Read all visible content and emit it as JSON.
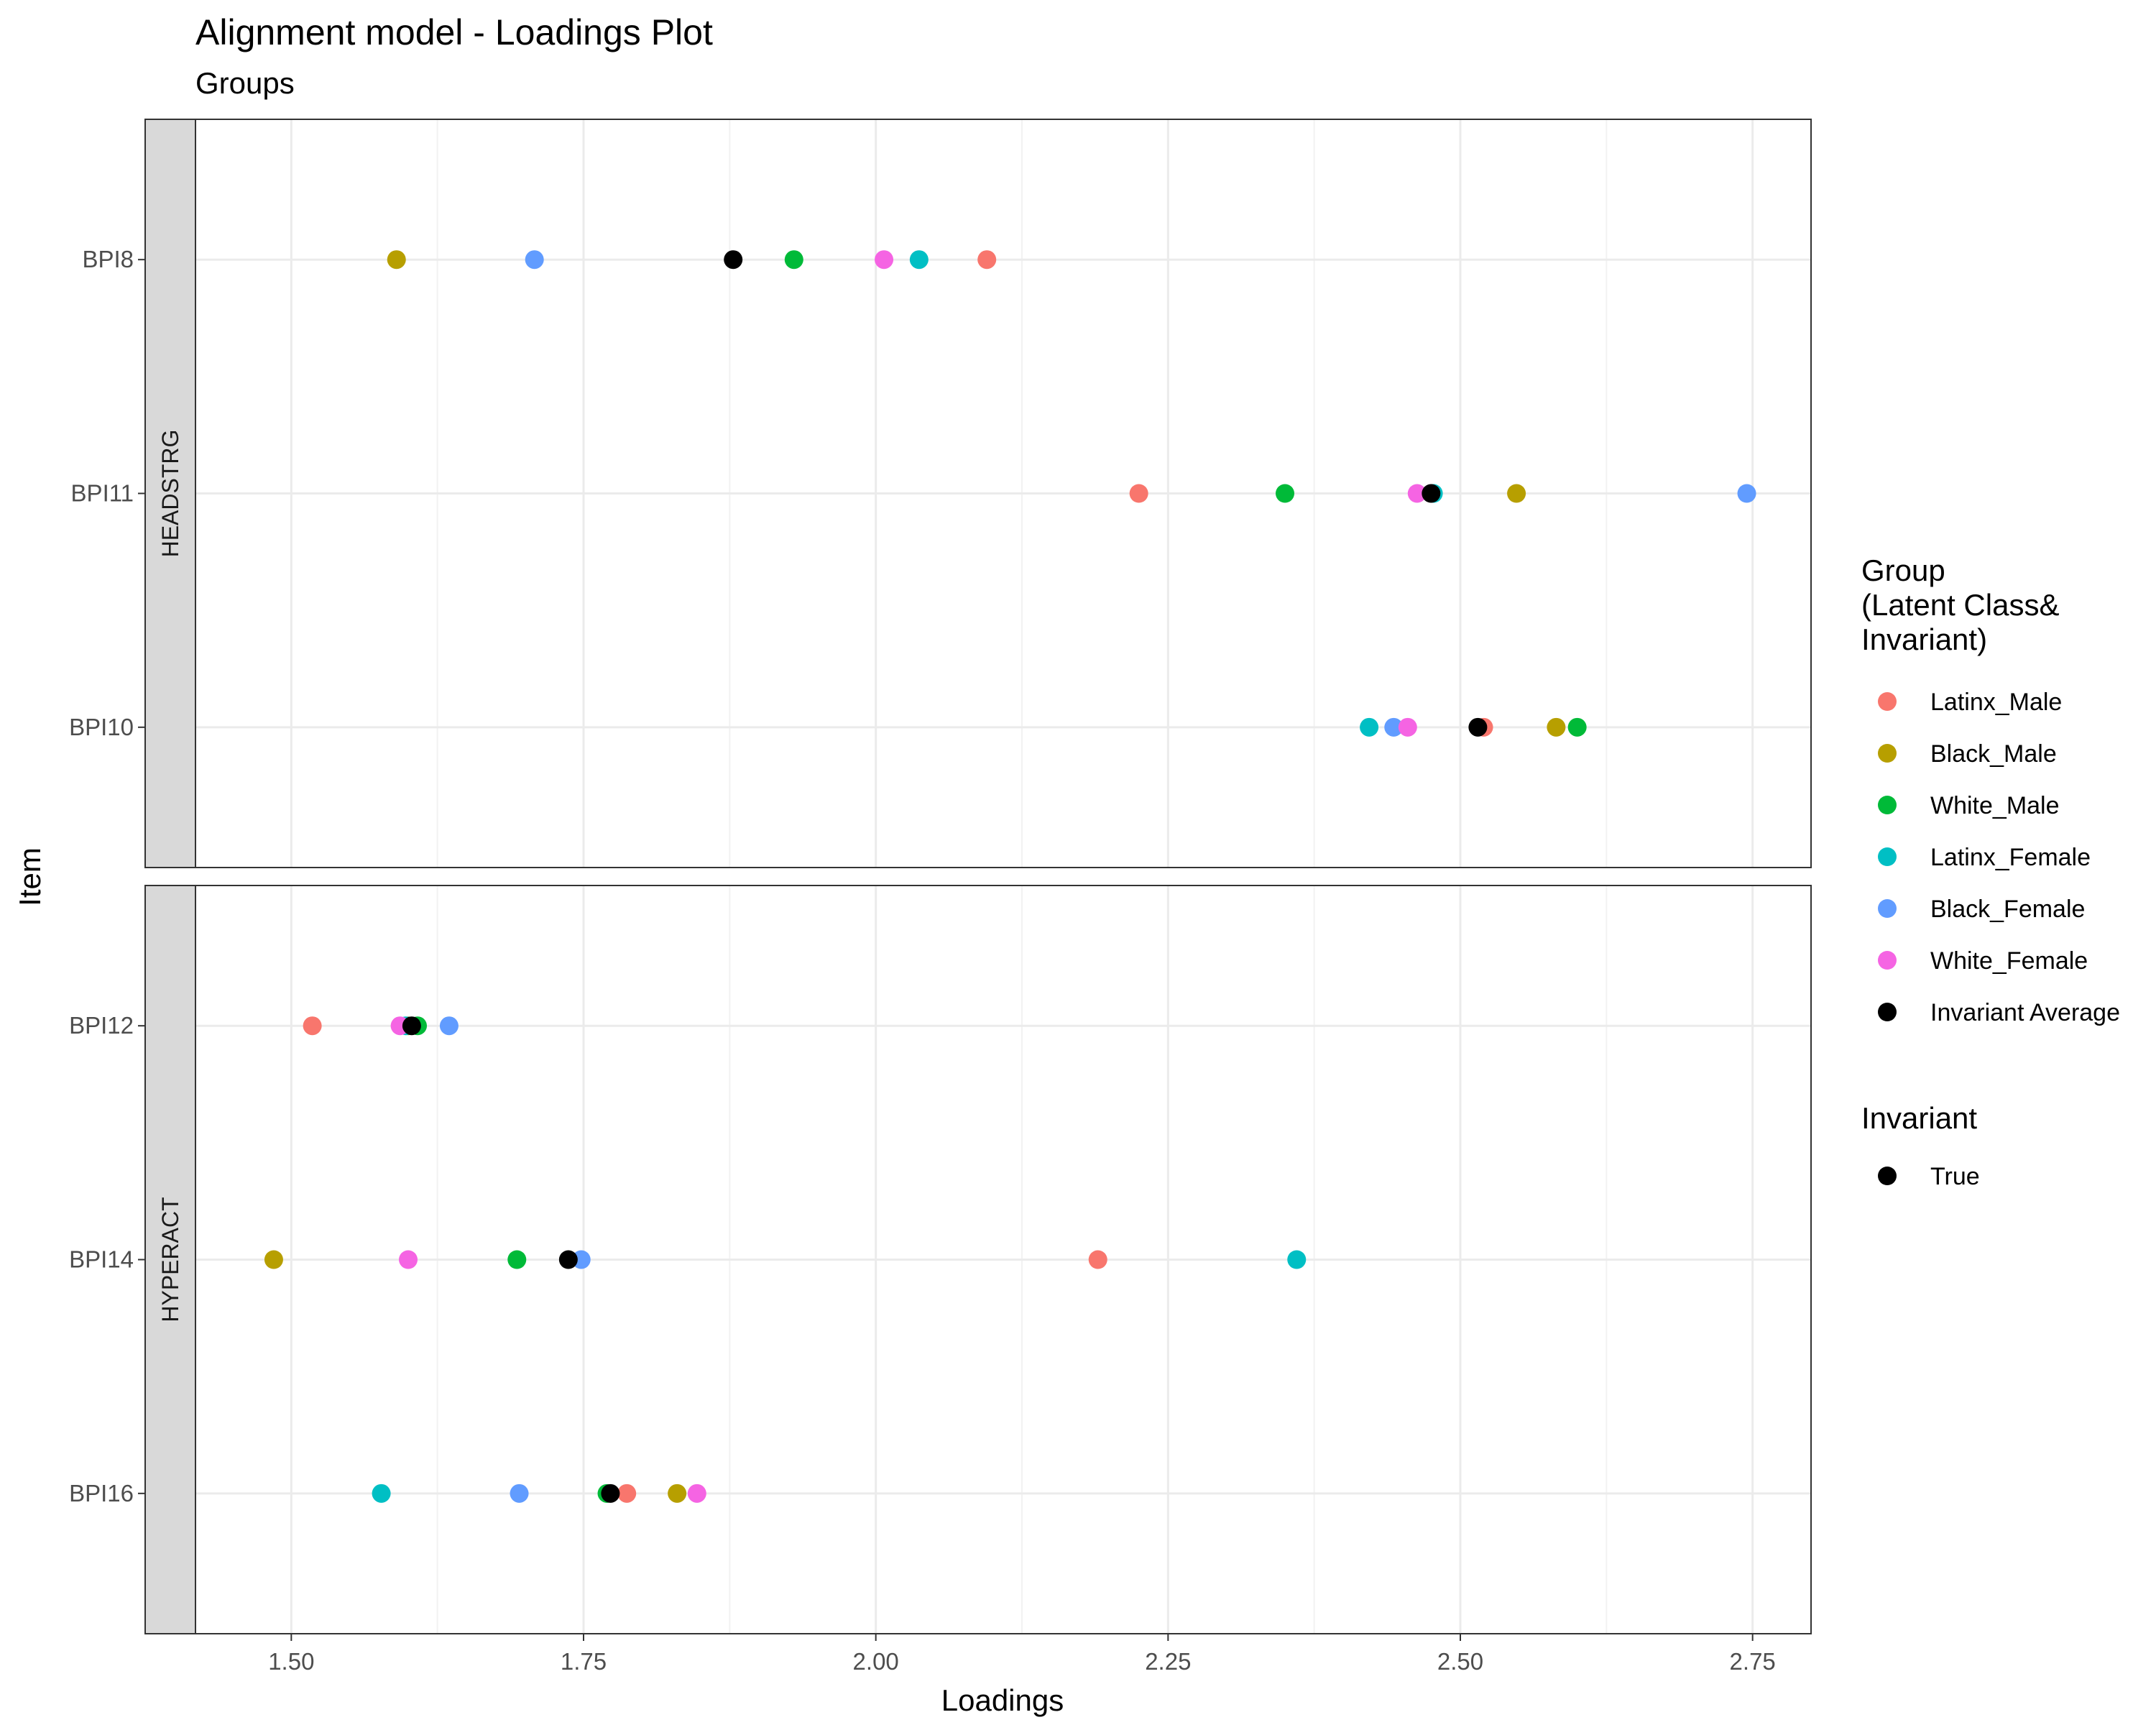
{
  "chart_data": {
    "type": "scatter",
    "title": "Alignment model - Loadings Plot",
    "subtitle": "Groups",
    "xlabel": "Loadings",
    "ylabel": "Item",
    "xlim": [
      1.375,
      2.8
    ],
    "x_ticks": [
      "1.50",
      "1.75",
      "2.00",
      "2.25",
      "2.50",
      "2.75"
    ],
    "x_tick_values": [
      1.5,
      1.75,
      2.0,
      2.25,
      2.5,
      2.75
    ],
    "grid": true,
    "legend_position": "right",
    "legend": {
      "title": "Group\n(Latent Class&\nInvariant)",
      "entries": [
        {
          "name": "Latinx_Male",
          "color": "#F8766D"
        },
        {
          "name": "Black_Male",
          "color": "#B79F00"
        },
        {
          "name": "White_Male",
          "color": "#00BA38"
        },
        {
          "name": "Latinx_Female",
          "color": "#00BFC4"
        },
        {
          "name": "Black_Female",
          "color": "#619CFF"
        },
        {
          "name": "White_Female",
          "color": "#F564E3"
        },
        {
          "name": "Invariant Average",
          "color": "#000000"
        }
      ]
    },
    "legend2": {
      "title": "Invariant",
      "entries": [
        {
          "name": "True",
          "color": "#000000"
        }
      ]
    },
    "panels": [
      {
        "facet": "HEADSTRG",
        "items": [
          {
            "item": "BPI8",
            "values": {
              "Latinx_Male": 2.095,
              "Black_Male": 1.59,
              "White_Male": 1.93,
              "Latinx_Female": 2.037,
              "Black_Female": 1.708,
              "White_Female": 2.007,
              "Invariant Average": 1.878
            }
          },
          {
            "item": "BPI11",
            "values": {
              "Latinx_Male": 2.225,
              "Black_Male": 2.548,
              "White_Male": 2.35,
              "Latinx_Female": 2.477,
              "Black_Female": 2.745,
              "White_Female": 2.463,
              "Invariant Average": 2.475
            }
          },
          {
            "item": "BPI10",
            "values": {
              "Latinx_Male": 2.52,
              "Black_Male": 2.582,
              "White_Male": 2.6,
              "Latinx_Female": 2.422,
              "Black_Female": 2.443,
              "White_Female": 2.455,
              "Invariant Average": 2.515
            }
          }
        ]
      },
      {
        "facet": "HYPERACT",
        "items": [
          {
            "item": "BPI12",
            "values": {
              "Latinx_Male": 1.518,
              "Black_Male": 1.6,
              "White_Male": 1.608,
              "Latinx_Female": 1.598,
              "Black_Female": 1.635,
              "White_Female": 1.593,
              "Invariant Average": 1.603
            }
          },
          {
            "item": "BPI14",
            "values": {
              "Latinx_Male": 2.19,
              "Black_Male": 1.485,
              "White_Male": 1.693,
              "Latinx_Female": 2.36,
              "Black_Female": 1.748,
              "White_Female": 1.6,
              "Invariant Average": 1.737
            }
          },
          {
            "item": "BPI16",
            "values": {
              "Latinx_Male": 1.787,
              "Black_Male": 1.83,
              "White_Male": 1.77,
              "Latinx_Female": 1.577,
              "Black_Female": 1.695,
              "White_Female": 1.847,
              "Invariant Average": 1.773
            }
          }
        ]
      }
    ]
  }
}
